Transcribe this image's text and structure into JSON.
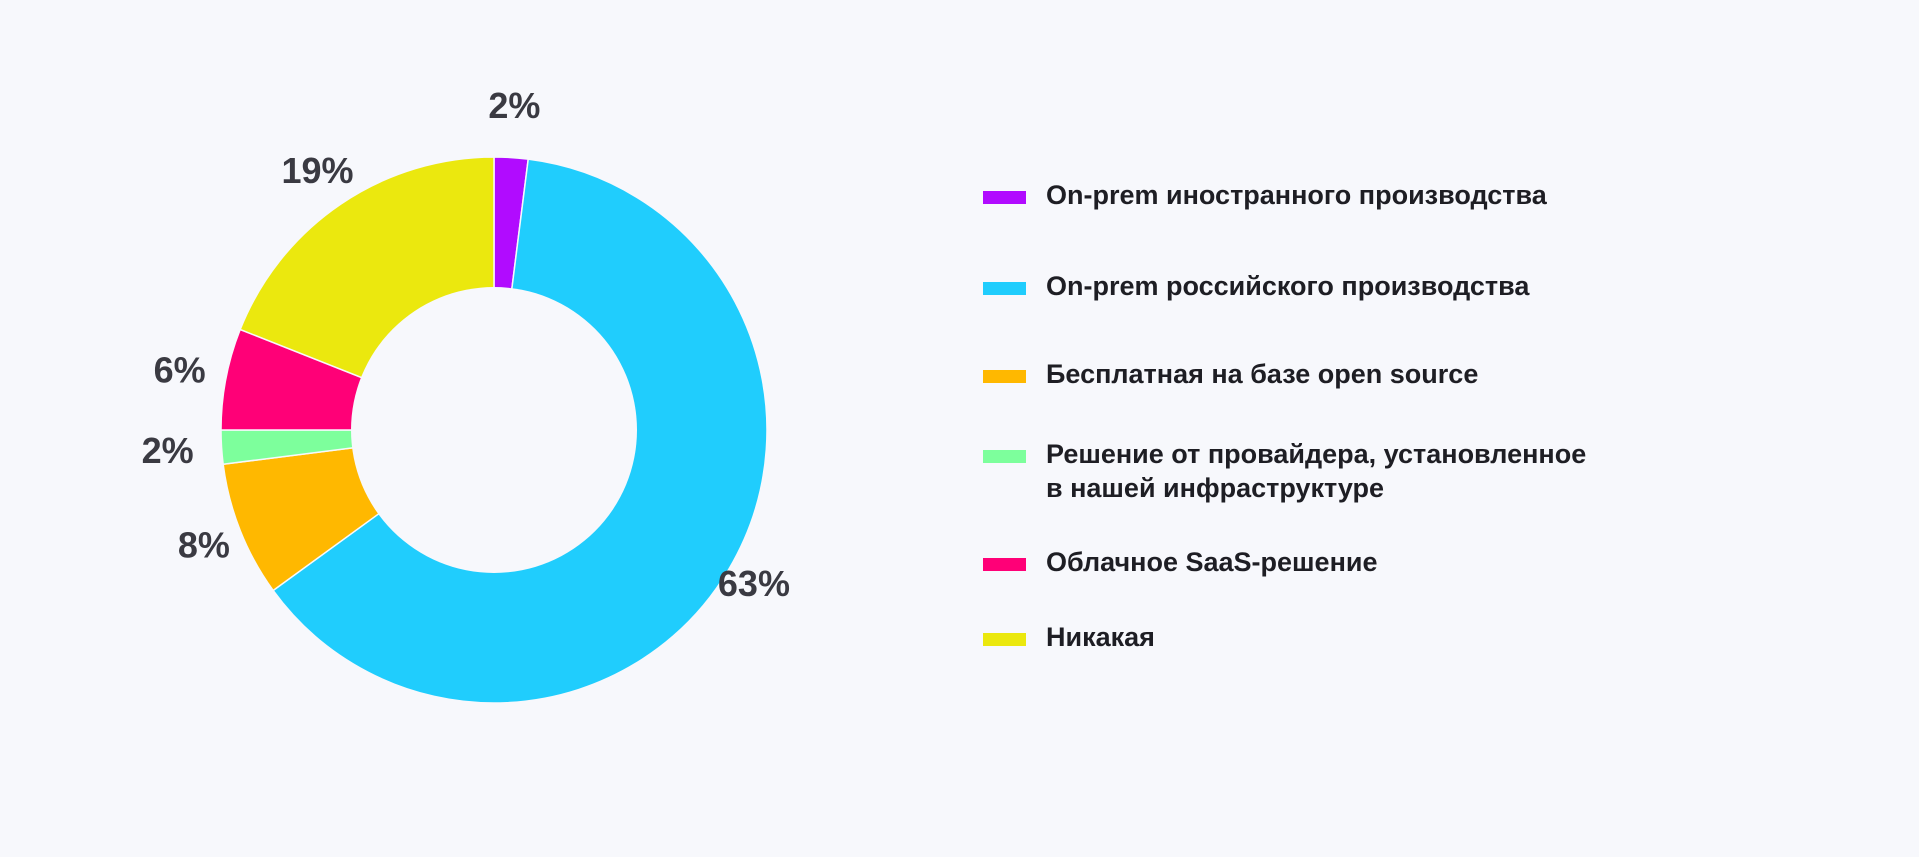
{
  "chart_data": {
    "type": "pie",
    "donut": true,
    "categories": [
      "On-prem иностранного производства",
      "On-prem российского производства",
      "Бесплатная на базе open source",
      "Решение от провайдера, установленное\nв нашей инфраструктуре",
      "Облачное SaaS-решение",
      "Никакая"
    ],
    "values": [
      2,
      63,
      8,
      2,
      6,
      19
    ],
    "value_labels": [
      "2%",
      "63%",
      "8%",
      "2%",
      "6%",
      "19%"
    ],
    "colors": [
      "#b10bff",
      "#20cdfd",
      "#ffb800",
      "#7dff9c",
      "#ff0077",
      "#ebe80e"
    ],
    "legend_position": "right"
  }
}
